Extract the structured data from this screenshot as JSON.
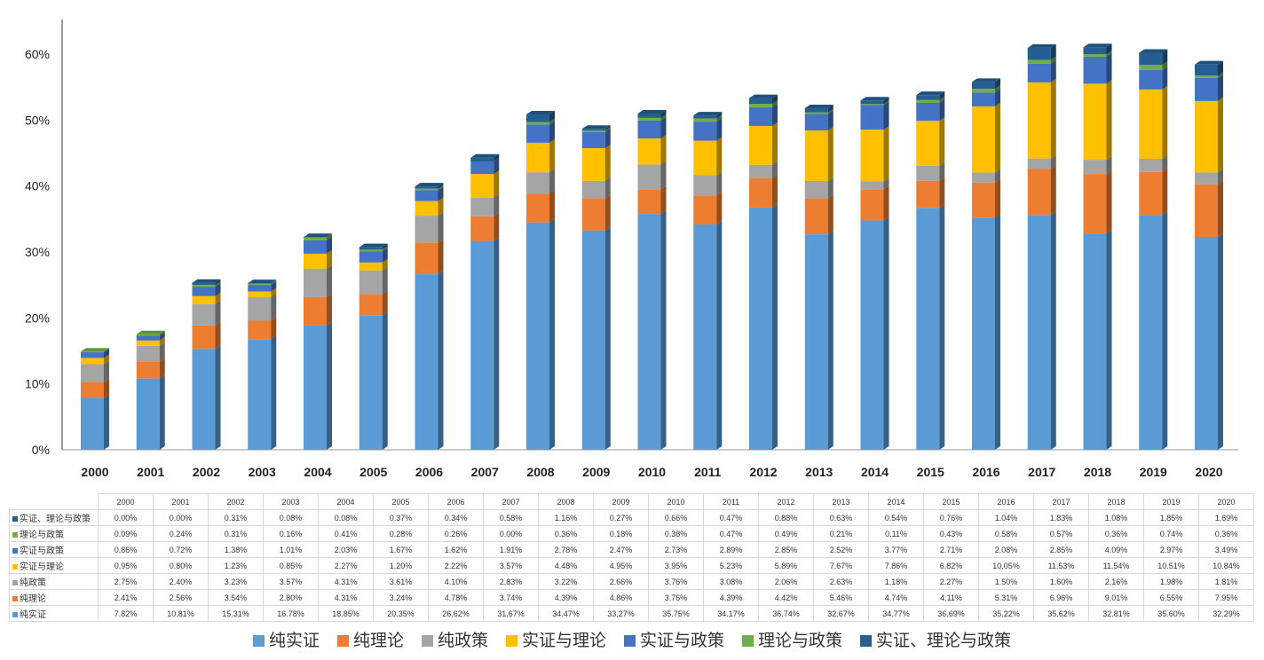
{
  "chart_data": {
    "type": "bar",
    "stacked": true,
    "title": "",
    "xlabel": "",
    "ylabel": "",
    "ylim": [
      0,
      60
    ],
    "yticks": [
      "0%",
      "10%",
      "20%",
      "30%",
      "40%",
      "50%",
      "60%"
    ],
    "legend_position": "bottom",
    "categories": [
      "2000",
      "2001",
      "2002",
      "2003",
      "2004",
      "2005",
      "2006",
      "2007",
      "2008",
      "2009",
      "2010",
      "2011",
      "2012",
      "2013",
      "2014",
      "2015",
      "2016",
      "2017",
      "2018",
      "2019",
      "2020"
    ],
    "series": [
      {
        "name": "纯实证",
        "color": "#5B9BD5",
        "values": [
          7.82,
          10.81,
          15.31,
          16.78,
          18.85,
          20.35,
          26.62,
          31.67,
          34.47,
          33.27,
          35.75,
          34.17,
          36.74,
          32.67,
          34.77,
          36.69,
          35.22,
          35.62,
          32.81,
          35.6,
          32.29
        ]
      },
      {
        "name": "纯理论",
        "color": "#ED7D31",
        "values": [
          2.41,
          2.56,
          3.54,
          2.8,
          4.31,
          3.24,
          4.78,
          3.74,
          4.39,
          4.86,
          3.76,
          4.39,
          4.42,
          5.46,
          4.74,
          4.11,
          5.31,
          6.96,
          9.01,
          6.55,
          7.95
        ]
      },
      {
        "name": "纯政策",
        "color": "#A5A5A5",
        "values": [
          2.75,
          2.4,
          3.23,
          3.57,
          4.31,
          3.61,
          4.1,
          2.83,
          3.22,
          2.66,
          3.76,
          3.08,
          2.06,
          2.63,
          1.18,
          2.27,
          1.5,
          1.6,
          2.16,
          1.98,
          1.81
        ]
      },
      {
        "name": "实证与理论",
        "color": "#FFC000",
        "values": [
          0.95,
          0.8,
          1.23,
          0.85,
          2.27,
          1.2,
          2.22,
          3.57,
          4.48,
          4.95,
          3.95,
          5.23,
          5.89,
          7.67,
          7.86,
          6.82,
          10.05,
          11.53,
          11.54,
          10.51,
          10.84
        ]
      },
      {
        "name": "实证与政策",
        "color": "#4472C4",
        "values": [
          0.86,
          0.72,
          1.38,
          1.01,
          2.03,
          1.67,
          1.62,
          1.91,
          2.78,
          2.47,
          2.73,
          2.89,
          2.85,
          2.52,
          3.77,
          2.71,
          2.08,
          2.85,
          4.09,
          2.97,
          3.49
        ]
      },
      {
        "name": "理论与政策",
        "color": "#70AD47",
        "values": [
          0.09,
          0.24,
          0.31,
          0.16,
          0.41,
          0.28,
          0.26,
          0.0,
          0.36,
          0.18,
          0.38,
          0.47,
          0.49,
          0.21,
          0.11,
          0.43,
          0.58,
          0.57,
          0.36,
          0.74,
          0.36
        ]
      },
      {
        "name": "实证、理论与政策",
        "color": "#255E91",
        "values": [
          0.0,
          0.0,
          0.31,
          0.08,
          0.08,
          0.37,
          0.34,
          0.58,
          1.16,
          0.27,
          0.66,
          0.47,
          0.88,
          0.63,
          0.54,
          0.76,
          1.04,
          1.83,
          1.08,
          1.85,
          1.69
        ]
      }
    ]
  }
}
